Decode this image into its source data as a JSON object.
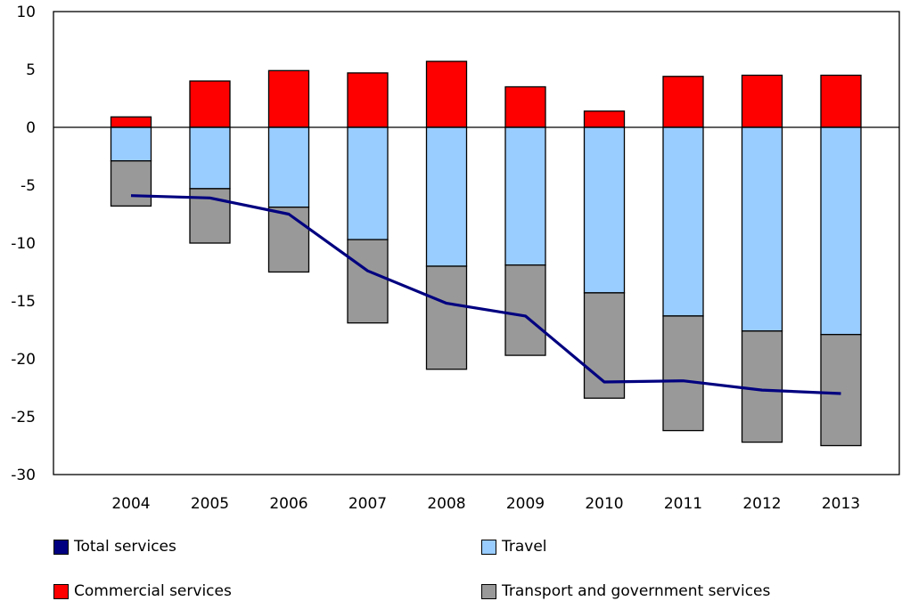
{
  "chart_data": {
    "type": "bar",
    "stacked": true,
    "categories": [
      "2004",
      "2005",
      "2006",
      "2007",
      "2008",
      "2009",
      "2010",
      "2011",
      "2012",
      "2013"
    ],
    "ylim": [
      -30,
      10
    ],
    "yticks": [
      10,
      5,
      0,
      -5,
      -10,
      -15,
      -20,
      -25,
      -30
    ],
    "grid": false,
    "legend_position": "bottom",
    "series": [
      {
        "name": "Commercial services",
        "kind": "bar",
        "color": "#ff0000",
        "values": [
          0.9,
          4.0,
          4.9,
          4.7,
          5.7,
          3.5,
          1.4,
          4.4,
          4.5,
          4.5
        ]
      },
      {
        "name": "Travel",
        "kind": "bar",
        "color": "#99ccff",
        "values": [
          -2.9,
          -5.3,
          -6.9,
          -9.7,
          -12.0,
          -11.9,
          -14.3,
          -16.3,
          -17.6,
          -17.9
        ]
      },
      {
        "name": "Transport and government services",
        "kind": "bar",
        "color": "#999999",
        "values": [
          -3.9,
          -4.7,
          -5.6,
          -7.2,
          -8.9,
          -7.8,
          -9.1,
          -9.9,
          -9.6,
          -9.6
        ]
      },
      {
        "name": "Total services",
        "kind": "line",
        "color": "#000080",
        "values": [
          -5.9,
          -6.1,
          -7.5,
          -12.4,
          -15.2,
          -16.3,
          -22.0,
          -21.9,
          -22.7,
          -23.0
        ]
      }
    ]
  },
  "legend": {
    "total": "Total services",
    "travel": "Travel",
    "commercial": "Commercial services",
    "transport": "Transport and government services"
  }
}
